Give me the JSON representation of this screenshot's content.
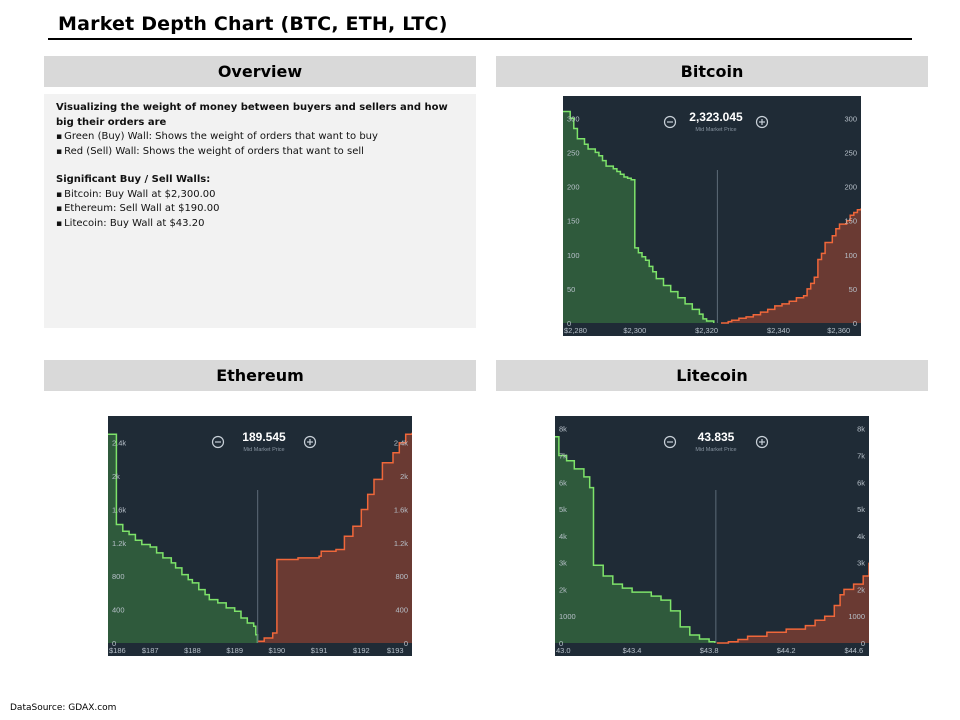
{
  "page": {
    "title": "Market Depth Chart (BTC, ETH, LTC)",
    "source": "DataSource: GDAX.com"
  },
  "sections": {
    "overview": "Overview",
    "bitcoin": "Bitcoin",
    "ethereum": "Ethereum",
    "litecoin": "Litecoin"
  },
  "overview": {
    "intro": "Visualizing the weight of money between buyers and sellers and how big their orders are",
    "bullets": [
      "Green (Buy) Wall: Shows the weight of orders that want to buy",
      "Red (Sell) Wall: Shows the weight of orders that want to sell"
    ],
    "walls_heading": "Significant Buy / Sell Walls:",
    "walls": [
      "Bitcoin: Buy Wall at $2,300.00",
      "Ethereum: Sell Wall at $190.00",
      "Litecoin: Buy Wall at $43.20"
    ]
  },
  "colors": {
    "chart_bg": "#1f2b36",
    "buy_line": "#7ee36a",
    "buy_fill": "#2f5a3c",
    "sell_line": "#f0673a",
    "sell_fill": "#6a3a33",
    "axis_text": "#b7c0c9",
    "mid_line": "#5d6b78"
  },
  "chart_data": [
    {
      "type": "area",
      "name": "bitcoin",
      "mid_price": "2,323.045",
      "mid_label": "Mid Market Price",
      "x_ticks": [
        "$2,280",
        "$2,300",
        "$2,320",
        "$2,340",
        "$2,360"
      ],
      "x_tick_values": [
        2280,
        2300,
        2320,
        2340,
        2360
      ],
      "y_ticks": [
        "0",
        "50",
        "100",
        "150",
        "200",
        "250",
        "300"
      ],
      "y_tick_values": [
        0,
        50,
        100,
        150,
        200,
        250,
        300
      ],
      "xlim": [
        2280,
        2363
      ],
      "ylim": [
        0,
        318
      ],
      "mid": 2323,
      "right_axis": true,
      "buy": [
        [
          2280,
          310
        ],
        [
          2282,
          310
        ],
        [
          2282,
          300
        ],
        [
          2283,
          285
        ],
        [
          2284,
          270
        ],
        [
          2286,
          262
        ],
        [
          2287,
          255
        ],
        [
          2289,
          250
        ],
        [
          2290,
          245
        ],
        [
          2291,
          238
        ],
        [
          2292,
          230
        ],
        [
          2294,
          226
        ],
        [
          2295,
          222
        ],
        [
          2296,
          218
        ],
        [
          2297,
          214
        ],
        [
          2298,
          212
        ],
        [
          2299,
          210
        ],
        [
          2300,
          208
        ],
        [
          2300,
          110
        ],
        [
          2301,
          103
        ],
        [
          2302,
          97
        ],
        [
          2303,
          92
        ],
        [
          2304,
          83
        ],
        [
          2305,
          75
        ],
        [
          2306,
          65
        ],
        [
          2308,
          55
        ],
        [
          2310,
          46
        ],
        [
          2312,
          37
        ],
        [
          2314,
          28
        ],
        [
          2316,
          20
        ],
        [
          2318,
          13
        ],
        [
          2319,
          6
        ],
        [
          2320,
          3
        ],
        [
          2322,
          0
        ]
      ],
      "sell": [
        [
          2324,
          0
        ],
        [
          2326,
          2
        ],
        [
          2327,
          4
        ],
        [
          2329,
          7
        ],
        [
          2331,
          9
        ],
        [
          2333,
          12
        ],
        [
          2335,
          16
        ],
        [
          2337,
          20
        ],
        [
          2339,
          25
        ],
        [
          2341,
          28
        ],
        [
          2343,
          32
        ],
        [
          2345,
          37
        ],
        [
          2347,
          40
        ],
        [
          2348,
          50
        ],
        [
          2349,
          58
        ],
        [
          2350,
          67
        ],
        [
          2351,
          93
        ],
        [
          2352,
          102
        ],
        [
          2353,
          118
        ],
        [
          2355,
          128
        ],
        [
          2356,
          138
        ],
        [
          2357,
          145
        ],
        [
          2359,
          150
        ],
        [
          2360,
          158
        ],
        [
          2361,
          162
        ],
        [
          2362,
          166
        ],
        [
          2363,
          168
        ]
      ]
    },
    {
      "type": "area",
      "name": "ethereum",
      "mid_price": "189.545",
      "mid_label": "Mid Market Price",
      "x_ticks": [
        "$186",
        "$187",
        "$188",
        "$189",
        "$190",
        "$191",
        "$192",
        "$193"
      ],
      "x_tick_values": [
        186,
        187,
        188,
        189,
        190,
        191,
        192,
        193
      ],
      "y_ticks": [
        "0",
        "400",
        "800",
        "1.2k",
        "1.6k",
        "2k",
        "2.4k"
      ],
      "y_tick_values": [
        0,
        400,
        800,
        1200,
        1600,
        2000,
        2400
      ],
      "xlim": [
        186,
        193.2
      ],
      "ylim": [
        0,
        2600
      ],
      "mid": 189.545,
      "right_axis": true,
      "buy": [
        [
          186,
          2500
        ],
        [
          186.2,
          2450
        ],
        [
          186.2,
          1420
        ],
        [
          186.35,
          1340
        ],
        [
          186.5,
          1300
        ],
        [
          186.65,
          1230
        ],
        [
          186.8,
          1180
        ],
        [
          187,
          1150
        ],
        [
          187.15,
          1080
        ],
        [
          187.3,
          1020
        ],
        [
          187.5,
          960
        ],
        [
          187.6,
          900
        ],
        [
          187.75,
          820
        ],
        [
          187.9,
          760
        ],
        [
          188,
          720
        ],
        [
          188.15,
          640
        ],
        [
          188.3,
          580
        ],
        [
          188.4,
          520
        ],
        [
          188.6,
          480
        ],
        [
          188.8,
          420
        ],
        [
          189,
          380
        ],
        [
          189.15,
          300
        ],
        [
          189.3,
          240
        ],
        [
          189.45,
          200
        ],
        [
          189.5,
          100
        ],
        [
          189.54,
          0
        ]
      ],
      "sell": [
        [
          189.55,
          20
        ],
        [
          189.7,
          60
        ],
        [
          189.9,
          120
        ],
        [
          190,
          140
        ],
        [
          190,
          1000
        ],
        [
          190.5,
          1020
        ],
        [
          191,
          1040
        ],
        [
          191.05,
          1100
        ],
        [
          191.4,
          1120
        ],
        [
          191.6,
          1280
        ],
        [
          191.8,
          1400
        ],
        [
          192,
          1600
        ],
        [
          192.15,
          1780
        ],
        [
          192.3,
          1960
        ],
        [
          192.5,
          2160
        ],
        [
          192.75,
          2280
        ],
        [
          192.9,
          2400
        ],
        [
          193.05,
          2500
        ],
        [
          193.2,
          2520
        ]
      ]
    },
    {
      "type": "area",
      "name": "litecoin",
      "mid_price": "43.835",
      "mid_label": "Mid Market Price",
      "x_ticks": [
        "43.0",
        "$43.4",
        "$43.8",
        "$44.2",
        "$44.6"
      ],
      "x_tick_values": [
        43.0,
        43.4,
        43.8,
        44.2,
        44.6
      ],
      "y_ticks": [
        "0",
        "1000",
        "2k",
        "3k",
        "4k",
        "5k",
        "6k",
        "7k",
        "8k"
      ],
      "y_tick_values": [
        0,
        1000,
        2000,
        3000,
        4000,
        5000,
        6000,
        7000,
        8000
      ],
      "xlim": [
        43.0,
        44.63
      ],
      "ylim": [
        0,
        8100
      ],
      "mid": 43.835,
      "right_axis": true,
      "buy": [
        [
          43.0,
          7700
        ],
        [
          43.02,
          7600
        ],
        [
          43.02,
          7000
        ],
        [
          43.06,
          6800
        ],
        [
          43.1,
          6500
        ],
        [
          43.15,
          6200
        ],
        [
          43.18,
          5800
        ],
        [
          43.2,
          5600
        ],
        [
          43.2,
          2900
        ],
        [
          43.25,
          2500
        ],
        [
          43.3,
          2200
        ],
        [
          43.35,
          2050
        ],
        [
          43.4,
          1900
        ],
        [
          43.5,
          1750
        ],
        [
          43.55,
          1600
        ],
        [
          43.6,
          1200
        ],
        [
          43.65,
          600
        ],
        [
          43.7,
          300
        ],
        [
          43.75,
          150
        ],
        [
          43.8,
          50
        ],
        [
          43.83,
          0
        ]
      ],
      "sell": [
        [
          43.84,
          0
        ],
        [
          43.9,
          50
        ],
        [
          43.95,
          130
        ],
        [
          44.0,
          250
        ],
        [
          44.1,
          400
        ],
        [
          44.2,
          520
        ],
        [
          44.3,
          650
        ],
        [
          44.35,
          850
        ],
        [
          44.4,
          1000
        ],
        [
          44.45,
          1400
        ],
        [
          44.48,
          1800
        ],
        [
          44.5,
          2000
        ],
        [
          44.55,
          2200
        ],
        [
          44.6,
          2500
        ],
        [
          44.63,
          3000
        ]
      ]
    }
  ]
}
